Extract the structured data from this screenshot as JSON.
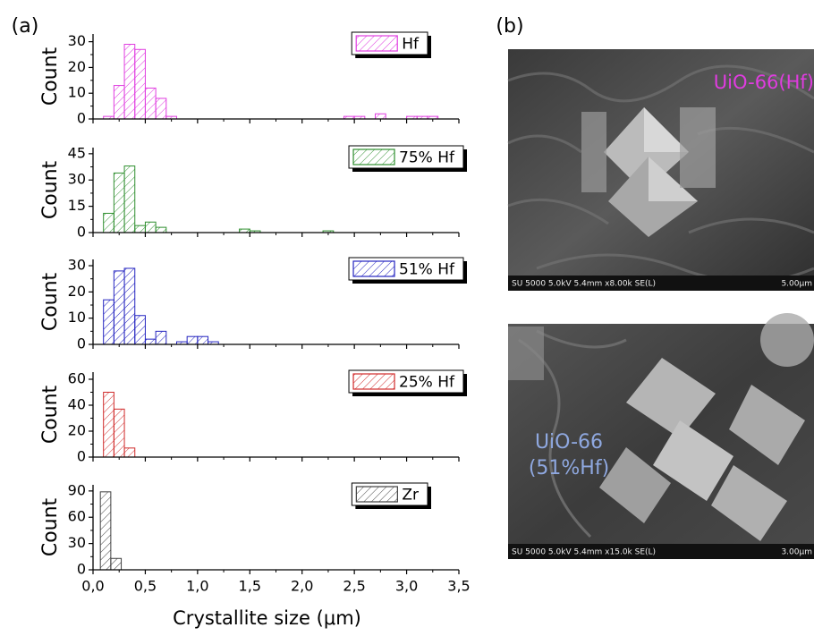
{
  "panel_labels": [
    "(a)",
    "(b)"
  ],
  "chart_data": [
    {
      "type": "histogram",
      "ylabel": "Count",
      "xlim": [
        0,
        3.5
      ],
      "ylim": [
        0,
        33
      ],
      "yticks": [
        0,
        10,
        20,
        30
      ],
      "bins": [
        0.1,
        0.2,
        0.3,
        0.4,
        0.5,
        0.6,
        0.7,
        0.8,
        0.9,
        1.0,
        1.1,
        1.2,
        1.3,
        1.4,
        1.5,
        1.6,
        1.7,
        1.8,
        1.9,
        2.0,
        2.1,
        2.2,
        2.3,
        2.4,
        2.5,
        2.6,
        2.7,
        2.8,
        2.9,
        3.0,
        3.1,
        3.2,
        3.3,
        3.4
      ],
      "series": [
        {
          "name": "Hf",
          "color": "#e03ce0",
          "values": [
            1,
            13,
            29,
            27,
            12,
            8,
            1,
            0,
            0,
            0,
            0,
            0,
            0,
            0,
            0,
            0,
            0,
            0,
            0,
            0,
            0,
            0,
            0,
            1,
            1,
            0,
            2,
            0,
            0,
            1,
            1,
            1,
            0
          ]
        }
      ]
    },
    {
      "type": "histogram",
      "ylabel": "Count",
      "xlim": [
        0,
        3.5
      ],
      "ylim": [
        0,
        48.5
      ],
      "yticks": [
        0,
        15,
        30,
        45
      ],
      "bins": [
        0.1,
        0.2,
        0.3,
        0.4,
        0.5,
        0.6,
        0.7,
        0.8,
        0.9,
        1.0,
        1.1,
        1.2,
        1.3,
        1.4,
        1.5,
        1.6,
        1.7,
        1.8,
        1.9,
        2.0,
        2.1,
        2.2,
        2.3
      ],
      "series": [
        {
          "name": "75% Hf",
          "color": "#2f8f2f",
          "values": [
            11,
            34,
            38,
            4,
            6,
            3,
            0,
            0,
            0,
            0,
            0,
            0,
            0,
            2,
            1,
            0,
            0,
            0,
            0,
            0,
            0,
            1
          ]
        }
      ]
    },
    {
      "type": "histogram",
      "ylabel": "Count",
      "xlim": [
        0,
        3.5
      ],
      "ylim": [
        0,
        32.4
      ],
      "yticks": [
        0,
        10,
        20,
        30
      ],
      "bins": [
        0.1,
        0.2,
        0.3,
        0.4,
        0.5,
        0.6,
        0.7,
        0.8,
        0.9,
        1.0,
        1.1,
        1.2
      ],
      "series": [
        {
          "name": "51% Hf",
          "color": "#2424c0",
          "values": [
            17,
            28,
            29,
            11,
            2,
            5,
            0,
            1,
            3,
            3,
            1
          ]
        }
      ]
    },
    {
      "type": "histogram",
      "ylabel": "Count",
      "xlim": [
        0,
        3.5
      ],
      "ylim": [
        0,
        65.5
      ],
      "yticks": [
        0,
        20,
        40,
        60
      ],
      "bins": [
        0.1,
        0.2,
        0.3,
        0.4
      ],
      "series": [
        {
          "name": "25% Hf",
          "color": "#d02a2a",
          "values": [
            50,
            37,
            7
          ]
        }
      ]
    },
    {
      "type": "histogram",
      "ylabel": "Count",
      "xlabel": "Crystallite size (μm)",
      "xlim": [
        0,
        3.5
      ],
      "ylim": [
        0,
        97
      ],
      "yticks": [
        0,
        30,
        60,
        90
      ],
      "xticks": [
        {
          "value": 0,
          "label": "0,0"
        },
        {
          "value": 0.5,
          "label": "0,5"
        },
        {
          "value": 1,
          "label": "1,0"
        },
        {
          "value": 1.5,
          "label": "1,5"
        },
        {
          "value": 2,
          "label": "2,0"
        },
        {
          "value": 2.5,
          "label": "2,5"
        },
        {
          "value": 3,
          "label": "3,0"
        },
        {
          "value": 3.5,
          "label": "3,5"
        }
      ],
      "bins": [
        0.07,
        0.17,
        0.27
      ],
      "series": [
        {
          "name": "Zr",
          "color": "#404040",
          "values": [
            89,
            13
          ]
        }
      ]
    }
  ],
  "images": [
    {
      "label": "UiO-66(Hf)",
      "info": "SU 5000 5.0kV 5.4mm x8.00k SE(L)",
      "scale": "5.00μm"
    },
    {
      "label_lines": [
        "UiO-66",
        "(51%Hf)"
      ],
      "info": "SU 5000 5.0kV 5.4mm x15.0k SE(L)",
      "scale": "3.00μm"
    }
  ]
}
